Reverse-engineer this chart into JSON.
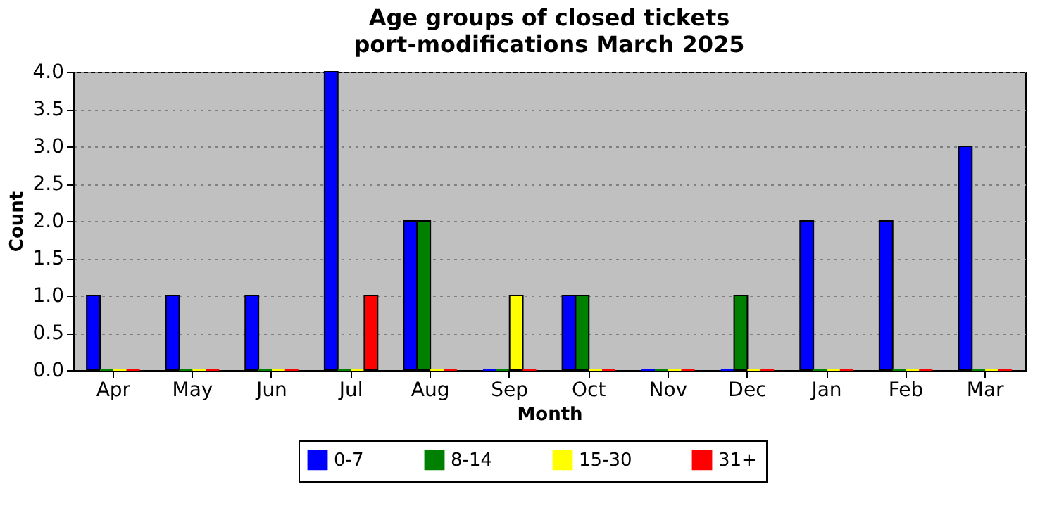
{
  "chart_data": {
    "type": "bar",
    "title": "Age groups of closed tickets",
    "subtitle": "port-modifications March 2025",
    "xlabel": "Month",
    "ylabel": "Count",
    "categories": [
      "Apr",
      "May",
      "Jun",
      "Jul",
      "Aug",
      "Sep",
      "Oct",
      "Nov",
      "Dec",
      "Jan",
      "Feb",
      "Mar"
    ],
    "series": [
      {
        "name": "0-7",
        "color": "#0000ff",
        "values": [
          1,
          1,
          1,
          4,
          2,
          0,
          1,
          0,
          0,
          2,
          2,
          3
        ]
      },
      {
        "name": "8-14",
        "color": "#008000",
        "values": [
          0,
          0,
          0,
          0,
          2,
          0,
          1,
          0,
          1,
          0,
          0,
          0
        ]
      },
      {
        "name": "15-30",
        "color": "#ffff00",
        "values": [
          0,
          0,
          0,
          0,
          0,
          1,
          0,
          0,
          0,
          0,
          0,
          0
        ]
      },
      {
        "name": "31+",
        "color": "#ff0000",
        "values": [
          0,
          0,
          0,
          1,
          0,
          0,
          0,
          0,
          0,
          0,
          0,
          0
        ]
      }
    ],
    "ylim": [
      0,
      4
    ],
    "yticks": [
      {
        "value": 0,
        "label": "0.0"
      },
      {
        "value": 0.5,
        "label": "0.5"
      },
      {
        "value": 1,
        "label": "1.0"
      },
      {
        "value": 1.5,
        "label": "1.5"
      },
      {
        "value": 2,
        "label": "2.0"
      },
      {
        "value": 2.5,
        "label": "2.5"
      },
      {
        "value": 3,
        "label": "3.0"
      },
      {
        "value": 3.5,
        "label": "3.5"
      },
      {
        "value": 4,
        "label": "4.0"
      }
    ],
    "grid": "y",
    "legend": "bottom"
  }
}
